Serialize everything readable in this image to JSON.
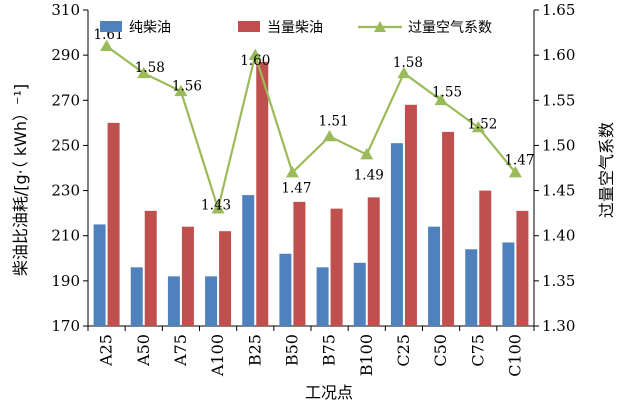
{
  "chart_data": {
    "type": "bar",
    "categories": [
      "A25",
      "A50",
      "A75",
      "A100",
      "B25",
      "B50",
      "B75",
      "B100",
      "C25",
      "C50",
      "C75",
      "C100"
    ],
    "series": [
      {
        "name": "纯柴油",
        "axis": "left",
        "type": "bar",
        "color": "#4F81BD",
        "values": [
          215,
          196,
          192,
          192,
          228,
          202,
          196,
          198,
          251,
          214,
          204,
          207
        ]
      },
      {
        "name": "当量柴油",
        "axis": "left",
        "type": "bar",
        "color": "#C0504D",
        "values": [
          260,
          221,
          214,
          212,
          287,
          225,
          222,
          227,
          268,
          256,
          230,
          221
        ]
      },
      {
        "name": "过量空气系数",
        "axis": "right",
        "type": "line",
        "color": "#9BBB59",
        "marker": "triangle",
        "values": [
          1.61,
          1.58,
          1.56,
          1.43,
          1.6,
          1.47,
          1.51,
          1.49,
          1.58,
          1.55,
          1.52,
          1.47
        ],
        "labels": [
          "1.61",
          "1.58",
          "1.56",
          "1.43",
          "1.60",
          "1.47",
          "1.51",
          "1.49",
          "1.58",
          "1.55",
          "1.52",
          "1.47"
        ]
      }
    ],
    "xlabel": "工况点",
    "ylabel": "柴油比油耗/[g·（ kWh）⁻¹]",
    "y2label": "过量空气系数",
    "ylim": [
      170,
      310
    ],
    "y2lim": [
      1.3,
      1.65
    ],
    "yticks": [
      "170",
      "190",
      "210",
      "230",
      "250",
      "270",
      "290",
      "310"
    ],
    "y2ticks": [
      "1.30",
      "1.35",
      "1.40",
      "1.45",
      "1.50",
      "1.55",
      "1.60",
      "1.65"
    ],
    "grid": false,
    "legend_position": "top"
  }
}
